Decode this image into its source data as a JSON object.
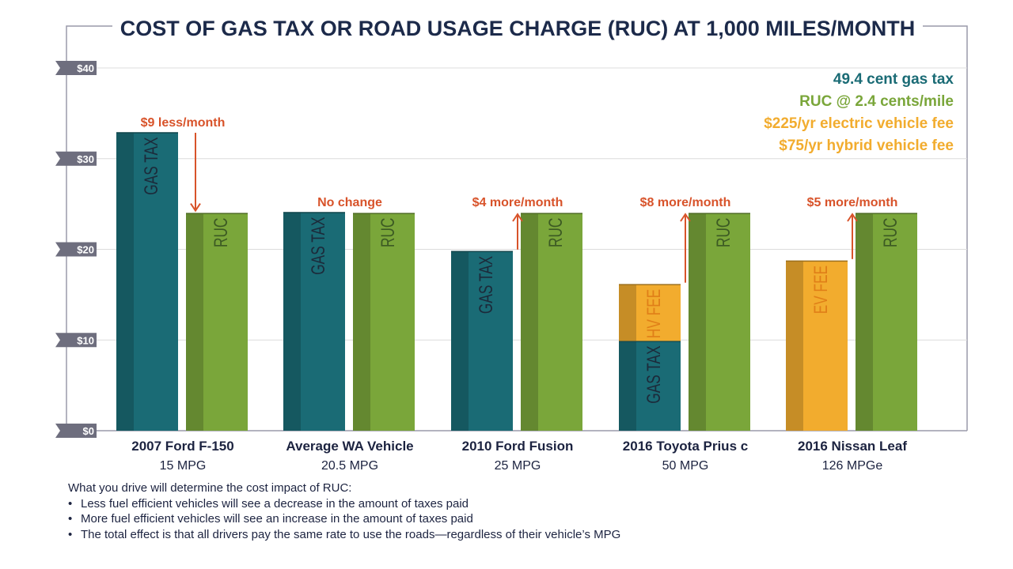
{
  "chart_data": {
    "type": "bar",
    "title": "COST OF GAS TAX OR ROAD USAGE CHARGE (RUC) AT 1,000 MILES/MONTH",
    "ylim": [
      0,
      40
    ],
    "yticks": [
      0,
      10,
      20,
      30,
      40
    ],
    "ytick_labels": [
      "$0",
      "$10",
      "$20",
      "$30",
      "$40"
    ],
    "grid": true,
    "legend_position": "top-right",
    "categories": [
      {
        "name": "2007 Ford F-150",
        "mpg": "15 MPG"
      },
      {
        "name": "Average WA Vehicle",
        "mpg": "20.5 MPG"
      },
      {
        "name": "2010 Ford Fusion",
        "mpg": "25 MPG"
      },
      {
        "name": "2016 Toyota Prius c",
        "mpg": "50 MPG"
      },
      {
        "name": "2016 Nissan Leaf",
        "mpg": "126 MPGe"
      }
    ],
    "series": [
      {
        "name": "49.4 cent gas tax",
        "label": "GAS TAX",
        "color": "#1a6b75",
        "values": [
          32.9,
          24.1,
          19.8,
          9.9,
          0
        ]
      },
      {
        "name": "$75/yr hybrid vehicle fee",
        "label": "HV FEE",
        "color": "#f2ac2e",
        "values": [
          0,
          0,
          0,
          6.25,
          0
        ]
      },
      {
        "name": "$225/yr electric vehicle fee",
        "label": "EV FEE",
        "color": "#f2ac2e",
        "values": [
          0,
          0,
          0,
          0,
          18.75
        ]
      },
      {
        "name": "RUC @ 2.4 cents/mile",
        "label": "RUC",
        "color": "#7aa63a",
        "values": [
          24,
          24,
          24,
          24,
          24
        ]
      }
    ],
    "annotations": [
      {
        "text": "$9 less/month",
        "direction": "down"
      },
      {
        "text": "No change",
        "direction": "none"
      },
      {
        "text": "$4 more/month",
        "direction": "up"
      },
      {
        "text": "$8 more/month",
        "direction": "up"
      },
      {
        "text": "$5 more/month",
        "direction": "up"
      }
    ],
    "legend": [
      {
        "text": "49.4 cent gas tax",
        "color": "#1a6b75"
      },
      {
        "text": "RUC @ 2.4 cents/mile",
        "color": "#7aa63a"
      },
      {
        "text": "$225/yr electric vehicle fee",
        "color": "#f2ac2e"
      },
      {
        "text": "$75/yr hybrid vehicle fee",
        "color": "#f2ac2e"
      }
    ]
  },
  "notes": {
    "heading": "What you drive will determine the cost impact of RUC:",
    "bullets": [
      "Less fuel efficient vehicles will see a decrease in the amount of taxes paid",
      "More fuel efficient vehicles will see an increase in the amount of taxes paid",
      "The total effect is that all drivers pay the same rate to use the roads—regardless of their vehicle’s MPG"
    ]
  },
  "colors": {
    "title": "#1c2a4a",
    "annotation": "#d8532a",
    "axis_tab": "#6e6e7e",
    "frame": "#9a9aaa",
    "gridline": "#dcdcdc",
    "bar_label": "#1c2a3a",
    "fee_label": "#e07f18",
    "ruc_label": "#3c5a23"
  }
}
